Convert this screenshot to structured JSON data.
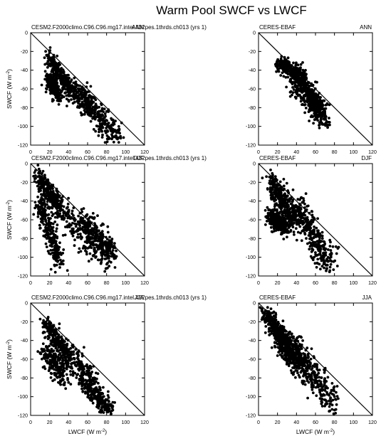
{
  "figure": {
    "title": "Warm Pool SWCF vs LWCF",
    "axes": {
      "xlabel": "LWCF (W m",
      "ylabel": "SWCF (W m",
      "unit_exponent": "-2",
      "xlim": [
        0,
        120
      ],
      "ylim": [
        -120,
        0
      ],
      "xticks": [
        "0",
        "20",
        "40",
        "60",
        "80",
        "100",
        "120"
      ],
      "yticks": [
        "0",
        "-20",
        "-40",
        "-60",
        "-80",
        "-100",
        "-120"
      ],
      "reference_line": "y = -x"
    },
    "colors": {
      "points": "#000000",
      "frame": "#000000",
      "background": "#ffffff"
    }
  },
  "chart_data": [
    {
      "type": "scatter",
      "left_label": "CESM2.F2000climo.C96.C96.mg17.intel.432pes.1thrds.ch013 (yrs 1)",
      "right_label": "ANN",
      "show_xlabel": false,
      "show_ylabel": true,
      "clusters": [
        {
          "x": [
            18,
            40
          ],
          "y": [
            -24,
            -58
          ],
          "spread": 4
        },
        {
          "x": [
            38,
            62
          ],
          "y": [
            -55,
            -78
          ],
          "spread": 6
        },
        {
          "x": [
            58,
            90
          ],
          "y": [
            -72,
            -112
          ],
          "spread": 7
        },
        {
          "x": [
            18,
            30
          ],
          "y": [
            -48,
            -68
          ],
          "spread": 4
        }
      ],
      "n_points": 900
    },
    {
      "type": "scatter",
      "left_label": "CERES-EBAF",
      "right_label": "ANN",
      "show_xlabel": false,
      "show_ylabel": false,
      "clusters": [
        {
          "x": [
            20,
            48
          ],
          "y": [
            -33,
            -47
          ],
          "spread": 4
        },
        {
          "x": [
            35,
            65
          ],
          "y": [
            -45,
            -85
          ],
          "spread": 7
        },
        {
          "x": [
            50,
            70
          ],
          "y": [
            -60,
            -92
          ],
          "spread": 6
        }
      ],
      "n_points": 800
    },
    {
      "type": "scatter",
      "left_label": "CESM2.F2000climo.C96.C96.mg17.intel.432pes.1thrds.ch013 (yrs 1)",
      "right_label": "DJF",
      "show_xlabel": false,
      "show_ylabel": true,
      "clusters": [
        {
          "x": [
            8,
            30
          ],
          "y": [
            -15,
            -45
          ],
          "spread": 5
        },
        {
          "x": [
            25,
            85
          ],
          "y": [
            -45,
            -105
          ],
          "spread": 8
        },
        {
          "x": [
            10,
            30
          ],
          "y": [
            -40,
            -105
          ],
          "spread": 6
        },
        {
          "x": [
            55,
            85
          ],
          "y": [
            -60,
            -95
          ],
          "spread": 6
        }
      ],
      "n_points": 1000
    },
    {
      "type": "scatter",
      "left_label": "CERES-EBAF",
      "right_label": "DJF",
      "show_xlabel": false,
      "show_ylabel": false,
      "clusters": [
        {
          "x": [
            12,
            40
          ],
          "y": [
            -20,
            -60
          ],
          "spread": 6
        },
        {
          "x": [
            40,
            75
          ],
          "y": [
            -45,
            -110
          ],
          "spread": 8
        },
        {
          "x": [
            12,
            30
          ],
          "y": [
            -55,
            -70
          ],
          "spread": 5
        }
      ],
      "n_points": 1000
    },
    {
      "type": "scatter",
      "left_label": "CESM2.F2000climo.C96.C96.mg17.intel.432pes.1thrds.ch013 (yrs 1)",
      "right_label": "JJA",
      "show_xlabel": true,
      "show_ylabel": true,
      "clusters": [
        {
          "x": [
            15,
            40
          ],
          "y": [
            -20,
            -60
          ],
          "spread": 5
        },
        {
          "x": [
            35,
            70
          ],
          "y": [
            -50,
            -90
          ],
          "spread": 7
        },
        {
          "x": [
            15,
            35
          ],
          "y": [
            -50,
            -80
          ],
          "spread": 6
        },
        {
          "x": [
            55,
            85
          ],
          "y": [
            -85,
            -115
          ],
          "spread": 5
        }
      ],
      "n_points": 850
    },
    {
      "type": "scatter",
      "left_label": "CERES-EBAF",
      "right_label": "JJA",
      "show_xlabel": true,
      "show_ylabel": false,
      "clusters": [
        {
          "x": [
            8,
            30
          ],
          "y": [
            -12,
            -45
          ],
          "spread": 5
        },
        {
          "x": [
            30,
            80
          ],
          "y": [
            -40,
            -108
          ],
          "spread": 8
        },
        {
          "x": [
            20,
            45
          ],
          "y": [
            -35,
            -70
          ],
          "spread": 7
        }
      ],
      "n_points": 950
    }
  ]
}
